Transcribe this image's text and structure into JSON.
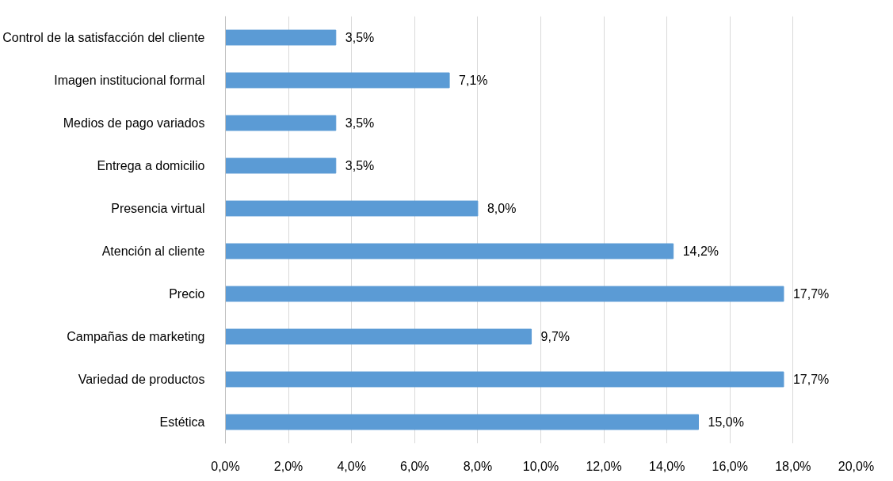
{
  "chart_data": {
    "type": "bar",
    "orientation": "horizontal",
    "categories": [
      "Control de la satisfacción del cliente",
      "Imagen institucional formal",
      "Medios de pago variados",
      "Entrega a domicilio",
      "Presencia virtual",
      "Atención al cliente",
      "Precio",
      "Campañas de marketing",
      "Variedad de productos",
      "Estética"
    ],
    "values": [
      3.5,
      7.1,
      3.5,
      3.5,
      8.0,
      14.2,
      17.7,
      9.7,
      17.7,
      15.0
    ],
    "value_labels": [
      "3,5%",
      "7,1%",
      "3,5%",
      "3,5%",
      "8,0%",
      "14,2%",
      "17,7%",
      "9,7%",
      "17,7%",
      "15,0%"
    ],
    "color": "#5b9bd5",
    "xlim": [
      0,
      20
    ],
    "xticks": [
      {
        "value": 0,
        "label": "0,0%"
      },
      {
        "value": 2,
        "label": "2,0%"
      },
      {
        "value": 4,
        "label": "4,0%"
      },
      {
        "value": 6,
        "label": "6,0%"
      },
      {
        "value": 8,
        "label": "8,0%"
      },
      {
        "value": 10,
        "label": "10,0%"
      },
      {
        "value": 12,
        "label": "12,0%"
      },
      {
        "value": 14,
        "label": "14,0%"
      },
      {
        "value": 16,
        "label": "16,0%"
      },
      {
        "value": 18,
        "label": "18,0%"
      },
      {
        "value": 20,
        "label": "20,0%"
      }
    ],
    "grid": "x"
  }
}
